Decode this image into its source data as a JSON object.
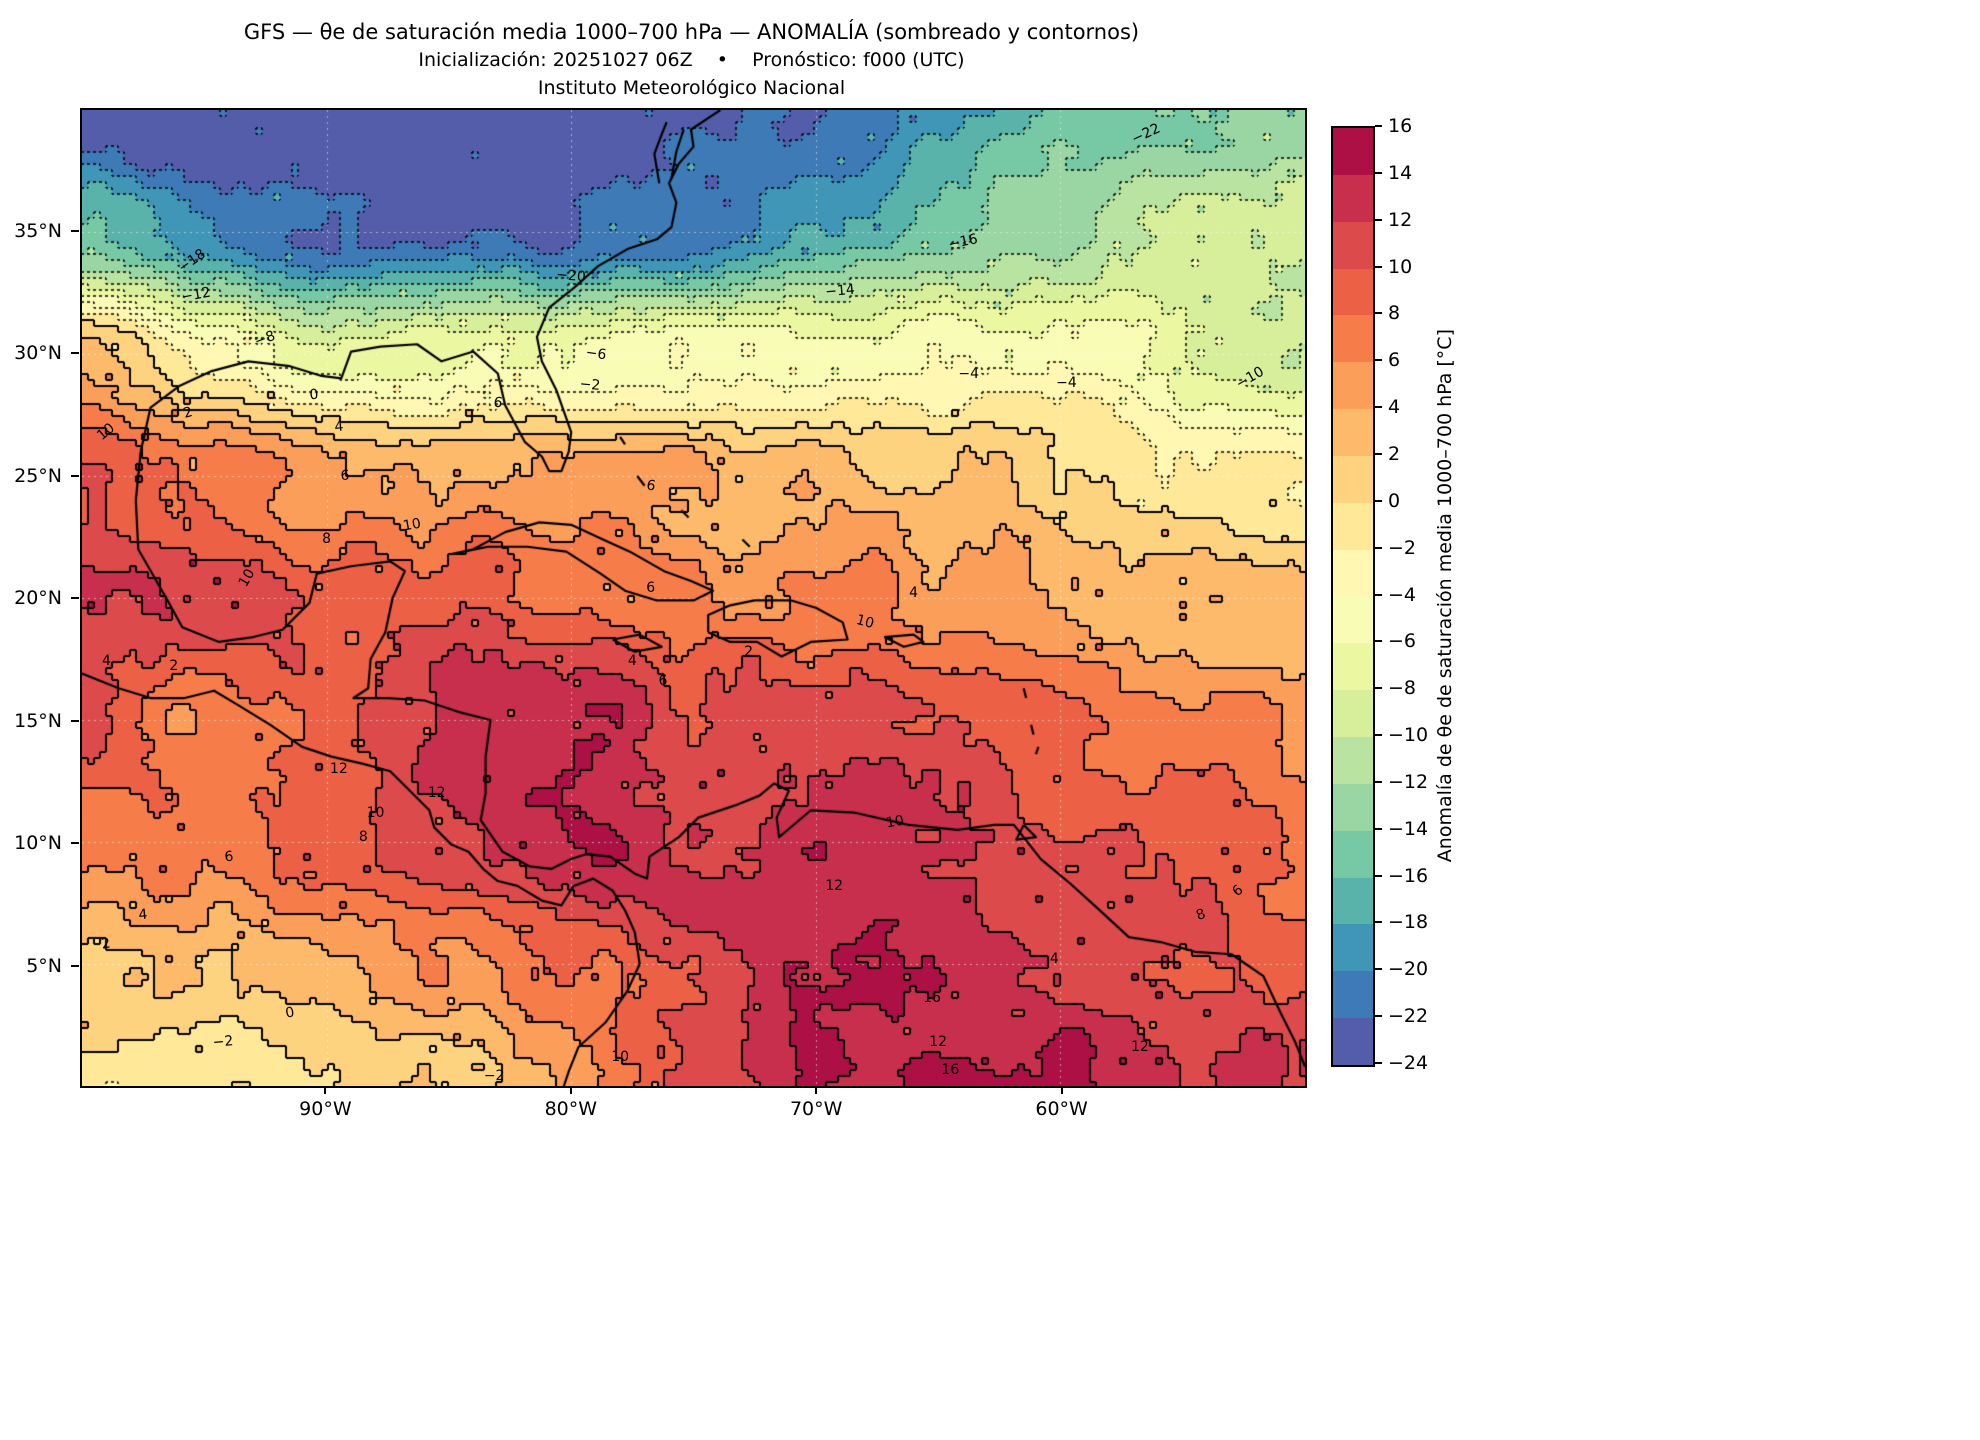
{
  "header": {
    "title": "GFS — θe de saturación media 1000–700 hPa — ANOMALÍA (sombreado y contornos)",
    "subtitle": "Inicialización: 20251027 06Z    •    Pronóstico: f000 (UTC)",
    "institution": "Instituto Meteorológico Nacional"
  },
  "chart_data": {
    "type": "heatmap",
    "title": "GFS — θe de saturación media 1000–700 hPa — ANOMALÍA (sombreado y contornos)",
    "subtitle": "Inicialización: 20251027 06Z • Pronóstico: f000 (UTC)",
    "institution": "Instituto Meteorológico Nacional",
    "units": "°C",
    "contour_interval": 2,
    "colormap": {
      "levels_min": -24,
      "levels_max": 16,
      "step": 2,
      "colors": [
        "#535da9",
        "#3d7ab6",
        "#3f96b7",
        "#59b3ab",
        "#77c8a4",
        "#99d6a4",
        "#b9e3a1",
        "#d7ef9b",
        "#ecf7a2",
        "#f9fcb5",
        "#fff7b2",
        "#ffe898",
        "#fed380",
        "#feba6b",
        "#fb9e59",
        "#f67d4a",
        "#ec6146",
        "#dd4a4c",
        "#c72f4c",
        "#ac1045"
      ]
    },
    "colorbar": {
      "label": "Anomalía de θe de saturación media 1000–700 hPa [°C]",
      "ticks": [
        "16",
        "14",
        "12",
        "10",
        "8",
        "6",
        "4",
        "2",
        "0",
        "−2",
        "−4",
        "−6",
        "−8",
        "−10",
        "−12",
        "−14",
        "−16",
        "−18",
        "−20",
        "−22",
        "−24"
      ]
    },
    "x_axis": {
      "range": [
        -100,
        -50
      ],
      "ticks": [
        {
          "lon": -90,
          "label": "90°W"
        },
        {
          "lon": -80,
          "label": "80°W"
        },
        {
          "lon": -70,
          "label": "70°W"
        },
        {
          "lon": -60,
          "label": "60°W"
        }
      ]
    },
    "y_axis": {
      "range": [
        0,
        40
      ],
      "ticks": [
        {
          "lat": 35,
          "label": "35°N"
        },
        {
          "lat": 30,
          "label": "30°N"
        },
        {
          "lat": 25,
          "label": "25°N"
        },
        {
          "lat": 20,
          "label": "20°N"
        },
        {
          "lat": 15,
          "label": "15°N"
        },
        {
          "lat": 10,
          "label": "10°N"
        },
        {
          "lat": 5,
          "label": "5°N"
        }
      ]
    },
    "grid": {
      "lons": [
        -100,
        -95,
        -90,
        -85,
        -80,
        -75,
        -70,
        -65,
        -60,
        -55,
        -50
      ],
      "lats": [
        40,
        35,
        30,
        25,
        20,
        15,
        10,
        5,
        0
      ],
      "values": [
        [
          -24,
          -24,
          -24,
          -24,
          -23.5,
          -23,
          -22,
          -19,
          -16,
          -14,
          -13
        ],
        [
          -16,
          -20,
          -22.5,
          -22.5,
          -22,
          -21,
          -18,
          -15,
          -12,
          -10,
          -9
        ],
        [
          3,
          -3,
          -7,
          -6,
          -5,
          -5,
          -5,
          -4,
          -5,
          -7,
          -9.5
        ],
        [
          9,
          7,
          5,
          4.5,
          4,
          4,
          3,
          2,
          1,
          -1,
          -2.5
        ],
        [
          13,
          11,
          9,
          10,
          8,
          6,
          6,
          5,
          4,
          3,
          2
        ],
        [
          11,
          6,
          9,
          13,
          14,
          11,
          12,
          11,
          9,
          7,
          5
        ],
        [
          7,
          7,
          9,
          11,
          14,
          12,
          13,
          12,
          10,
          9,
          7
        ],
        [
          2,
          2,
          3,
          5,
          8,
          11,
          13,
          13,
          12,
          11,
          10
        ],
        [
          -2,
          -1,
          0,
          2,
          5,
          10,
          14,
          15,
          14,
          13,
          12
        ]
      ]
    },
    "contour_labels": [
      {
        "v": "−22",
        "x": 87,
        "y": 2.5,
        "r": -25
      },
      {
        "v": "−18",
        "x": 9,
        "y": 15.5,
        "r": -35
      },
      {
        "v": "−12",
        "x": 9.3,
        "y": 19,
        "r": -10
      },
      {
        "v": "−20",
        "x": 40,
        "y": 17,
        "r": 5
      },
      {
        "v": "−16",
        "x": 72,
        "y": 13.5,
        "r": -12
      },
      {
        "v": "−14",
        "x": 62,
        "y": 18.5,
        "r": -5
      },
      {
        "v": "−8",
        "x": 15,
        "y": 23.5,
        "r": -20
      },
      {
        "v": "−6",
        "x": 42,
        "y": 25,
        "r": 8
      },
      {
        "v": "−2",
        "x": 41.5,
        "y": 28.2,
        "r": 5
      },
      {
        "v": "−4",
        "x": 72.5,
        "y": 27,
        "r": 0
      },
      {
        "v": "−4",
        "x": 80.5,
        "y": 28,
        "r": 0
      },
      {
        "v": "−10",
        "x": 95.5,
        "y": 27.5,
        "r": -30
      },
      {
        "v": "0",
        "x": 19,
        "y": 29.2,
        "r": -5
      },
      {
        "v": "2",
        "x": 8.7,
        "y": 31,
        "r": -15
      },
      {
        "v": "4",
        "x": 21,
        "y": 32.5,
        "r": -5
      },
      {
        "v": "6",
        "x": 34,
        "y": 30,
        "r": 10
      },
      {
        "v": "10",
        "x": 2,
        "y": 33,
        "r": -40
      },
      {
        "v": "6",
        "x": 21.5,
        "y": 37.5,
        "r": 0
      },
      {
        "v": "6",
        "x": 46.5,
        "y": 38.5,
        "r": 10
      },
      {
        "v": "8",
        "x": 20,
        "y": 44,
        "r": 0
      },
      {
        "v": "10",
        "x": 27,
        "y": 42.5,
        "r": -10
      },
      {
        "v": "10",
        "x": 13.5,
        "y": 48,
        "r": -60
      },
      {
        "v": "4",
        "x": 68,
        "y": 49.5,
        "r": 0
      },
      {
        "v": "10",
        "x": 64,
        "y": 52.5,
        "r": 15
      },
      {
        "v": "6",
        "x": 46.5,
        "y": 49,
        "r": 0
      },
      {
        "v": "2",
        "x": 54.5,
        "y": 55.5,
        "r": 0
      },
      {
        "v": "4",
        "x": 45,
        "y": 56.5,
        "r": 0
      },
      {
        "v": "6",
        "x": 47.5,
        "y": 58.5,
        "r": 0
      },
      {
        "v": "4",
        "x": 2,
        "y": 56.5,
        "r": 0
      },
      {
        "v": "2",
        "x": 7.5,
        "y": 57,
        "r": 0
      },
      {
        "v": "12",
        "x": 21,
        "y": 67.5,
        "r": 0
      },
      {
        "v": "12",
        "x": 29,
        "y": 70,
        "r": 0
      },
      {
        "v": "10",
        "x": 24,
        "y": 72,
        "r": 0
      },
      {
        "v": "8",
        "x": 23,
        "y": 74.5,
        "r": 0
      },
      {
        "v": "6",
        "x": 12,
        "y": 76.5,
        "r": -5
      },
      {
        "v": "10",
        "x": 66.5,
        "y": 73,
        "r": -10
      },
      {
        "v": "4",
        "x": 5,
        "y": 82.5,
        "r": -5
      },
      {
        "v": "2",
        "x": 2,
        "y": 85.5,
        "r": -10
      },
      {
        "v": "12",
        "x": 61.5,
        "y": 79.5,
        "r": 0
      },
      {
        "v": "16",
        "x": 69.5,
        "y": 91,
        "r": 0
      },
      {
        "v": "12",
        "x": 70,
        "y": 95.5,
        "r": 0
      },
      {
        "v": "16",
        "x": 71,
        "y": 98.4,
        "r": 0
      },
      {
        "v": "0",
        "x": 17,
        "y": 92.5,
        "r": -10
      },
      {
        "v": "−2",
        "x": 11.5,
        "y": 95.5,
        "r": -5
      },
      {
        "v": "−2",
        "x": 33.7,
        "y": 99,
        "r": 0
      },
      {
        "v": "6",
        "x": 94.5,
        "y": 80,
        "r": -40
      },
      {
        "v": "8",
        "x": 91.5,
        "y": 82.5,
        "r": -20
      },
      {
        "v": "4",
        "x": 79.5,
        "y": 87,
        "r": 0
      },
      {
        "v": "12",
        "x": 86.5,
        "y": 96,
        "r": 0
      },
      {
        "v": "10",
        "x": 44,
        "y": 97,
        "r": 0
      }
    ],
    "coastlines": [
      [
        [
          -97.6,
          26.0
        ],
        [
          -97.2,
          27.8
        ],
        [
          -96.0,
          28.7
        ],
        [
          -94.7,
          29.3
        ],
        [
          -93.2,
          29.7
        ],
        [
          -91.5,
          29.5
        ],
        [
          -90.2,
          29.1
        ],
        [
          -89.4,
          29.0
        ],
        [
          -89.0,
          30.1
        ],
        [
          -87.8,
          30.3
        ],
        [
          -86.3,
          30.4
        ],
        [
          -85.3,
          29.7
        ],
        [
          -84.0,
          30.1
        ],
        [
          -83.0,
          29.2
        ],
        [
          -82.7,
          27.9
        ],
        [
          -81.9,
          26.4
        ],
        [
          -81.2,
          25.8
        ],
        [
          -80.9,
          25.2
        ],
        [
          -80.4,
          25.2
        ],
        [
          -80.1,
          26.0
        ],
        [
          -80.0,
          26.8
        ],
        [
          -80.6,
          28.5
        ],
        [
          -81.2,
          29.7
        ],
        [
          -81.4,
          30.7
        ],
        [
          -80.9,
          31.9
        ],
        [
          -79.9,
          32.7
        ],
        [
          -78.9,
          33.6
        ],
        [
          -77.7,
          34.3
        ],
        [
          -76.5,
          34.7
        ],
        [
          -75.9,
          35.2
        ],
        [
          -75.7,
          36.2
        ],
        [
          -76.0,
          37.0
        ],
        [
          -75.6,
          37.8
        ],
        [
          -75.0,
          38.5
        ],
        [
          -75.1,
          39.2
        ],
        [
          -74.2,
          39.8
        ],
        [
          -73.9,
          40.0
        ]
      ],
      [
        [
          -76.4,
          37.0
        ],
        [
          -76.6,
          38.2
        ],
        [
          -76.3,
          39.0
        ],
        [
          -76.1,
          39.5
        ]
      ],
      [
        [
          -75.9,
          37.2
        ],
        [
          -75.7,
          38.3
        ],
        [
          -75.4,
          39.2
        ]
      ],
      [
        [
          -97.6,
          26.0
        ],
        [
          -97.8,
          24.0
        ],
        [
          -97.7,
          22.0
        ],
        [
          -96.5,
          19.9
        ],
        [
          -95.9,
          18.8
        ],
        [
          -94.4,
          18.2
        ],
        [
          -93.0,
          18.4
        ],
        [
          -91.8,
          18.7
        ],
        [
          -90.7,
          19.8
        ],
        [
          -90.4,
          21.0
        ],
        [
          -89.0,
          21.3
        ],
        [
          -87.4,
          21.5
        ],
        [
          -86.8,
          21.1
        ],
        [
          -87.3,
          20.0
        ],
        [
          -87.6,
          18.6
        ],
        [
          -88.2,
          17.5
        ],
        [
          -88.3,
          16.3
        ],
        [
          -88.9,
          15.9
        ],
        [
          -87.5,
          15.9
        ],
        [
          -86.0,
          15.8
        ],
        [
          -84.5,
          15.3
        ],
        [
          -83.3,
          15.0
        ],
        [
          -83.5,
          13.5
        ],
        [
          -83.5,
          12.0
        ],
        [
          -83.7,
          10.9
        ],
        [
          -82.8,
          9.6
        ],
        [
          -81.7,
          9.0
        ],
        [
          -80.8,
          8.9
        ],
        [
          -80.0,
          9.3
        ],
        [
          -79.4,
          9.5
        ],
        [
          -78.4,
          9.4
        ],
        [
          -77.4,
          8.7
        ],
        [
          -76.9,
          8.5
        ],
        [
          -76.8,
          9.4
        ],
        [
          -75.6,
          10.2
        ],
        [
          -74.8,
          11.0
        ],
        [
          -73.3,
          11.5
        ],
        [
          -72.3,
          11.9
        ],
        [
          -71.7,
          12.4
        ],
        [
          -71.1,
          12.1
        ],
        [
          -71.6,
          11.0
        ],
        [
          -71.5,
          10.2
        ],
        [
          -70.2,
          11.3
        ],
        [
          -68.4,
          11.2
        ],
        [
          -66.2,
          10.7
        ],
        [
          -64.2,
          10.5
        ],
        [
          -62.7,
          10.7
        ],
        [
          -61.9,
          10.7
        ],
        [
          -60.8,
          9.3
        ],
        [
          -59.6,
          8.3
        ],
        [
          -58.5,
          7.3
        ],
        [
          -57.2,
          6.1
        ],
        [
          -55.9,
          5.9
        ],
        [
          -54.5,
          5.5
        ],
        [
          -53.0,
          5.4
        ],
        [
          -51.7,
          4.5
        ],
        [
          -51.0,
          3.0
        ],
        [
          -50.4,
          1.8
        ],
        [
          -50.0,
          0.8
        ]
      ],
      [
        [
          -100.0,
          16.9
        ],
        [
          -98.5,
          16.3
        ],
        [
          -97.2,
          15.9
        ],
        [
          -95.8,
          15.9
        ],
        [
          -94.6,
          16.2
        ],
        [
          -93.6,
          15.6
        ],
        [
          -92.3,
          14.8
        ],
        [
          -91.0,
          13.9
        ],
        [
          -89.8,
          13.5
        ],
        [
          -88.5,
          13.2
        ],
        [
          -87.4,
          12.9
        ],
        [
          -86.7,
          12.2
        ],
        [
          -85.8,
          11.3
        ],
        [
          -85.6,
          10.6
        ],
        [
          -84.9,
          9.9
        ],
        [
          -84.2,
          9.6
        ],
        [
          -83.6,
          8.9
        ],
        [
          -83.0,
          8.4
        ],
        [
          -82.2,
          8.2
        ],
        [
          -81.2,
          7.6
        ],
        [
          -80.4,
          7.4
        ],
        [
          -79.9,
          8.2
        ],
        [
          -79.1,
          8.5
        ],
        [
          -78.3,
          8.0
        ],
        [
          -77.8,
          7.2
        ],
        [
          -77.4,
          6.3
        ],
        [
          -77.2,
          5.0
        ],
        [
          -77.7,
          3.9
        ],
        [
          -78.6,
          2.6
        ],
        [
          -79.7,
          1.6
        ],
        [
          -80.1,
          0.6
        ],
        [
          -80.3,
          0.0
        ]
      ],
      [
        [
          -84.9,
          21.8
        ],
        [
          -84.0,
          22.0
        ],
        [
          -82.7,
          22.7
        ],
        [
          -81.3,
          23.1
        ],
        [
          -80.0,
          23.0
        ],
        [
          -78.7,
          22.4
        ],
        [
          -77.6,
          21.9
        ],
        [
          -76.2,
          21.1
        ],
        [
          -75.1,
          20.7
        ],
        [
          -74.2,
          20.3
        ],
        [
          -75.0,
          19.9
        ],
        [
          -76.5,
          19.9
        ],
        [
          -77.8,
          20.3
        ],
        [
          -78.8,
          21.0
        ],
        [
          -80.2,
          21.9
        ],
        [
          -81.8,
          22.1
        ],
        [
          -83.4,
          22.1
        ],
        [
          -84.4,
          21.9
        ],
        [
          -84.9,
          21.8
        ]
      ],
      [
        [
          -74.4,
          18.6
        ],
        [
          -73.5,
          18.2
        ],
        [
          -72.4,
          18.2
        ],
        [
          -71.4,
          17.6
        ],
        [
          -70.2,
          18.2
        ],
        [
          -68.7,
          18.3
        ],
        [
          -68.9,
          19.0
        ],
        [
          -70.0,
          19.6
        ],
        [
          -71.0,
          19.9
        ],
        [
          -72.5,
          19.9
        ],
        [
          -73.5,
          19.7
        ],
        [
          -74.4,
          19.3
        ],
        [
          -74.4,
          18.6
        ]
      ],
      [
        [
          -78.3,
          18.3
        ],
        [
          -77.2,
          18.5
        ],
        [
          -76.3,
          18.0
        ],
        [
          -77.4,
          17.8
        ],
        [
          -78.3,
          18.3
        ]
      ],
      [
        [
          -67.2,
          18.4
        ],
        [
          -66.0,
          18.5
        ],
        [
          -65.6,
          18.2
        ],
        [
          -66.4,
          18.0
        ],
        [
          -67.2,
          18.4
        ]
      ],
      [
        [
          -78.0,
          26.6
        ],
        [
          -77.8,
          26.3
        ]
      ],
      [
        [
          -77.3,
          25.0
        ],
        [
          -77.0,
          24.6
        ]
      ],
      [
        [
          -75.5,
          23.6
        ],
        [
          -75.2,
          23.3
        ]
      ],
      [
        [
          -73.0,
          22.4
        ],
        [
          -72.7,
          22.1
        ]
      ],
      [
        [
          -61.5,
          16.3
        ],
        [
          -61.4,
          15.9
        ]
      ],
      [
        [
          -61.2,
          14.8
        ],
        [
          -61.1,
          14.4
        ]
      ],
      [
        [
          -60.9,
          13.9
        ],
        [
          -61.0,
          13.6
        ]
      ],
      [
        [
          -61.5,
          10.7
        ],
        [
          -61.0,
          10.2
        ],
        [
          -61.8,
          10.1
        ],
        [
          -61.5,
          10.7
        ]
      ]
    ]
  }
}
